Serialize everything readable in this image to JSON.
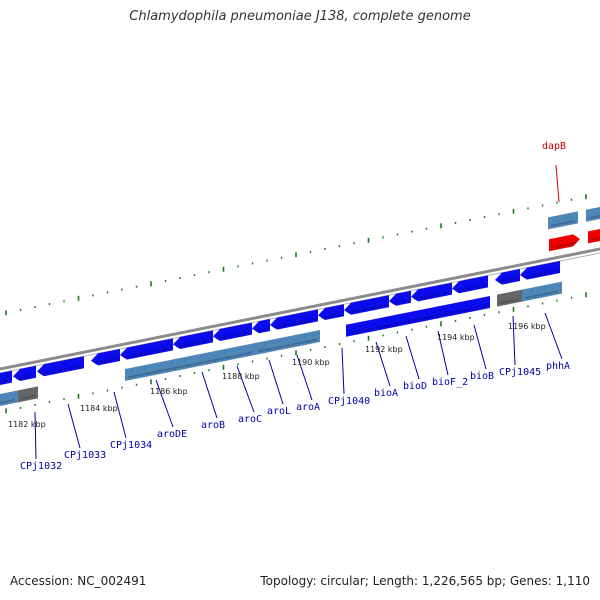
{
  "title": "Chlamydophila pneumoniae J138, complete genome",
  "footer": {
    "accession": "Accession: NC_002491",
    "summary": "Topology: circular; Length: 1,226,565 bp; Genes: 1,110"
  },
  "colors": {
    "gene_forward": "#0b0bee",
    "gene_reverse": "#4f86b8",
    "gene_gray": "#666666",
    "gene_highlight": "#ee0000",
    "label_normal": "#0000aa",
    "label_highlight": "#cc0000",
    "backbone": "#8c8c8c",
    "ticks": "#1a7a1a"
  },
  "kbp_labels": [
    "1182 kbp",
    "1184 kbp",
    "1186 kbp",
    "1188 kbp",
    "1190 kbp",
    "1192 kbp",
    "1194 kbp",
    "1196 kbp"
  ],
  "gene_labels": [
    "CPj1032",
    "CPj1033",
    "CPj1034",
    "aroDE",
    "aroB",
    "aroC",
    "aroL",
    "aroA",
    "CPj1040",
    "bioA",
    "bioD",
    "bioF_2",
    "bioB",
    "CPj1045",
    "phhA",
    "dapB"
  ]
}
